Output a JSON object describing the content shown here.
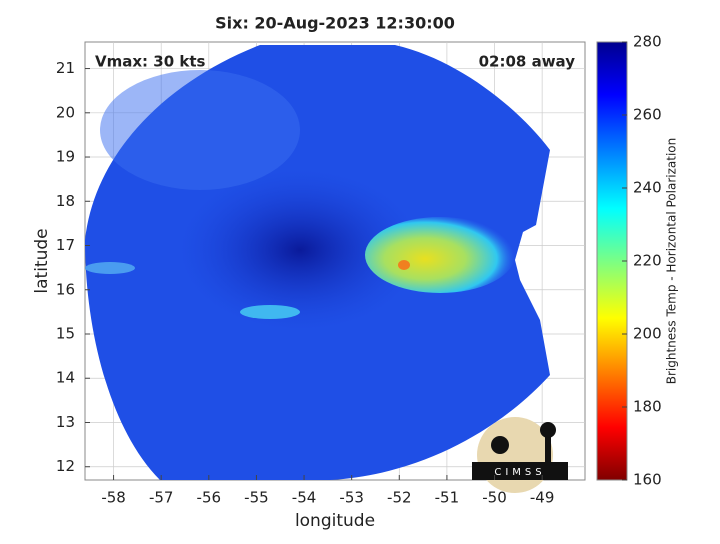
{
  "chart_data": {
    "type": "map",
    "title": "Six: 20-Aug-2023 12:30:00",
    "xlabel": "longitude",
    "ylabel": "latitude",
    "xlim": [
      -58.6,
      -48.1
    ],
    "ylim": [
      11.7,
      21.6
    ],
    "xticks": [
      -58,
      -57,
      -56,
      -55,
      -54,
      -53,
      -52,
      -51,
      -50,
      -49
    ],
    "yticks": [
      12,
      13,
      14,
      15,
      16,
      17,
      18,
      19,
      20,
      21
    ],
    "grid": true,
    "annotations": [
      "Vmax: 30 kts",
      "02:08 away"
    ],
    "logo_text": "CIMSS",
    "colorbar": {
      "label": "Brightness Temp - Horizontal Polarization",
      "clim": [
        160,
        280
      ],
      "ticks": [
        160,
        180,
        200,
        220,
        240,
        260,
        280
      ]
    }
  }
}
